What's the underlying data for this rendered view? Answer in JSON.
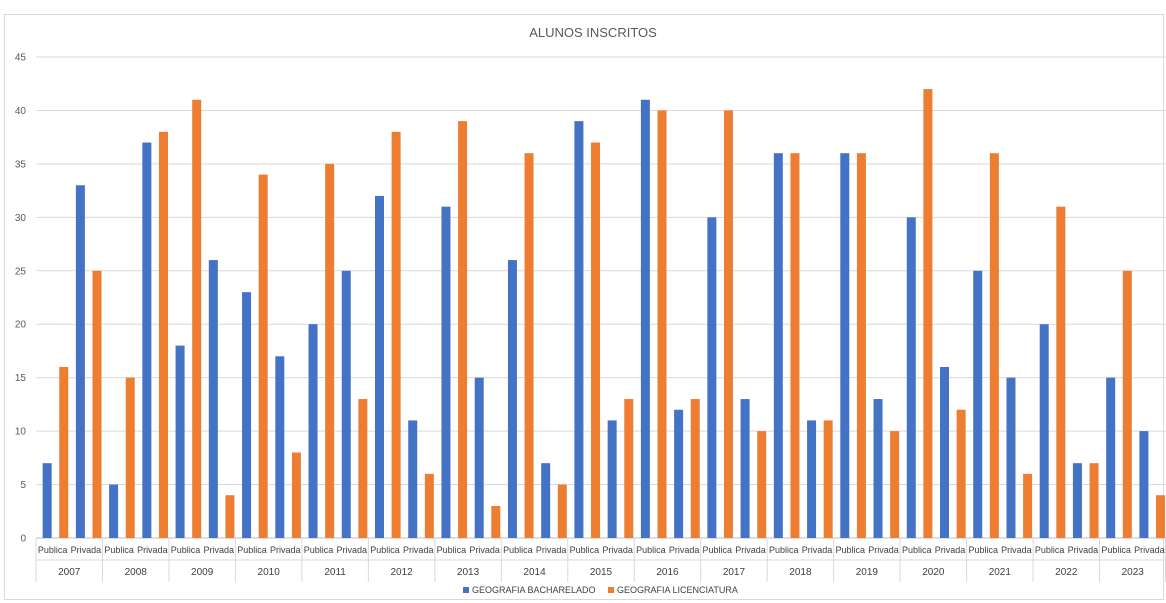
{
  "chart_data": {
    "type": "bar",
    "title": "ALUNOS INSCRITOS",
    "xlabel": "",
    "ylabel": "",
    "ylim": [
      0,
      45
    ],
    "yticks": [
      0,
      5,
      10,
      15,
      20,
      25,
      30,
      35,
      40,
      45
    ],
    "grid": true,
    "legend_position": "bottom",
    "sub_categories": [
      "Publica",
      "Privada"
    ],
    "years": [
      "2007",
      "2008",
      "2009",
      "2010",
      "2011",
      "2012",
      "2013",
      "2014",
      "2015",
      "2016",
      "2017",
      "2018",
      "2019",
      "2020",
      "2021",
      "2022",
      "2023"
    ],
    "series": [
      {
        "name": "GEOGRAFIA BACHARELADO",
        "color": "#4472c4",
        "values": [
          7,
          33,
          5,
          37,
          18,
          26,
          23,
          17,
          20,
          25,
          32,
          11,
          31,
          15,
          26,
          7,
          39,
          11,
          41,
          12,
          30,
          13,
          36,
          11,
          36,
          13,
          30,
          16,
          25,
          15,
          20,
          7,
          15,
          10
        ]
      },
      {
        "name": "GEOGRAFIA LICENCIATURA",
        "color": "#ed7d31",
        "values": [
          16,
          25,
          15,
          38,
          41,
          4,
          34,
          8,
          35,
          13,
          38,
          6,
          39,
          3,
          36,
          5,
          37,
          13,
          40,
          13,
          40,
          10,
          36,
          11,
          36,
          10,
          42,
          12,
          36,
          6,
          31,
          7,
          25,
          4
        ]
      }
    ]
  }
}
